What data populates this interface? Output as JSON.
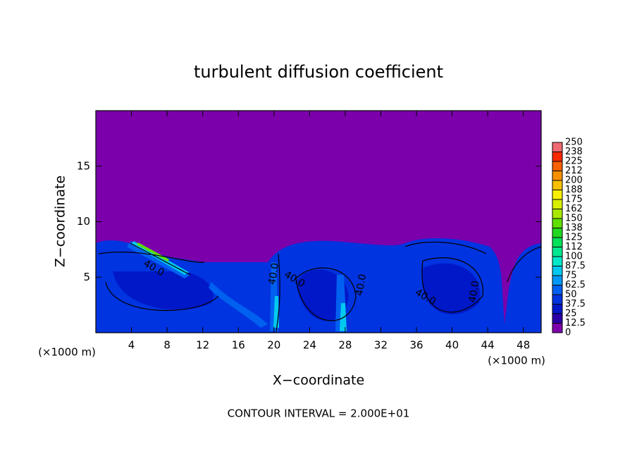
{
  "chart_data": {
    "type": "contour",
    "title": "turbulent diffusion coefficient",
    "x_label": "X−coordinate",
    "y_label": "Z−coordinate",
    "x_unit_left": "(×1000 m)",
    "x_unit_right": "(×1000 m)",
    "footer": "CONTOUR INTERVAL = 2.000E+01",
    "xlim": [
      0,
      50
    ],
    "xticks": [
      4,
      8,
      12,
      16,
      20,
      24,
      28,
      32,
      36,
      40,
      44,
      48
    ],
    "ylim": [
      0,
      20
    ],
    "yticks": [
      5,
      10,
      15
    ],
    "contour_labels": [
      {
        "text": "40.0",
        "x": 6.5,
        "y": 5.8
      },
      {
        "text": "40.0",
        "x": 20.0,
        "y": 5.3
      },
      {
        "text": "40.0",
        "x": 22.3,
        "y": 4.8
      },
      {
        "text": "40.0",
        "x": 29.8,
        "y": 4.3
      },
      {
        "text": "40.0",
        "x": 37.0,
        "y": 3.2
      },
      {
        "text": "40.0",
        "x": 42.5,
        "y": 3.7
      }
    ],
    "colorbar": {
      "levels": [
        0,
        12.5,
        25,
        37.5,
        50,
        62.5,
        75,
        87.5,
        100,
        112,
        125,
        138,
        150,
        162,
        175,
        188,
        200,
        212,
        225,
        238,
        250
      ],
      "colors": [
        "#7b00ab",
        "#2a00a8",
        "#0018c8",
        "#0034e0",
        "#0060f0",
        "#0098f8",
        "#00c8f0",
        "#00e8c8",
        "#00e890",
        "#00e058",
        "#20d820",
        "#60e000",
        "#a8e800",
        "#d8f000",
        "#f8f000",
        "#f8c000",
        "#f89000",
        "#f86000",
        "#f82800",
        "#f06870"
      ]
    }
  }
}
